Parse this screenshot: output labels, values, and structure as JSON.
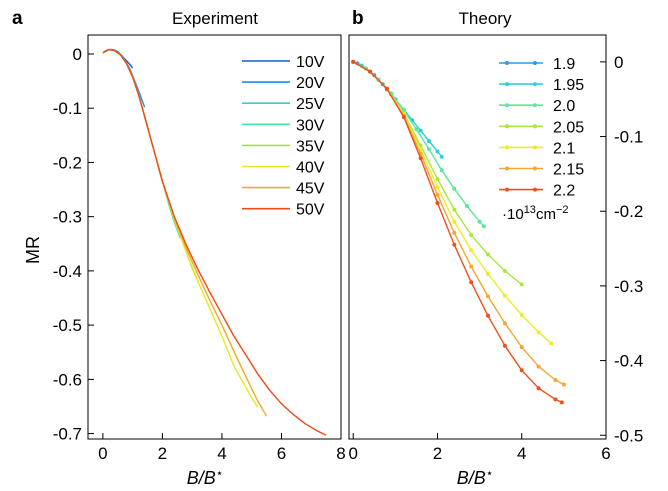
{
  "chart_data": [
    {
      "panel_letter": "a",
      "title": "Experiment",
      "type": "line",
      "xlabel_main": "B/B",
      "xlabel_sup": "⋆",
      "ylabel": "MR",
      "xlim": [
        -0.5,
        8
      ],
      "ylim": [
        -0.71,
        0.035
      ],
      "xticks": [
        0,
        2,
        4,
        6,
        8
      ],
      "yticks": [
        0,
        -0.1,
        -0.2,
        -0.3,
        -0.4,
        -0.5,
        -0.6,
        -0.7
      ],
      "ytick_labels": [
        "0",
        "-0.1",
        "-0.2",
        "-0.3",
        "-0.4",
        "-0.5",
        "-0.6",
        "-0.7"
      ],
      "legend_position": "top-right",
      "series": [
        {
          "name": "10V",
          "color": "#1060d0",
          "x": [
            0,
            0.1,
            0.2,
            0.3,
            0.4,
            0.5,
            0.6,
            0.7,
            0.8,
            0.9,
            1.0
          ],
          "y": [
            0.002,
            0.006,
            0.008,
            0.008,
            0.007,
            0.004,
            -0.001,
            -0.007,
            -0.013,
            -0.019,
            -0.026
          ]
        },
        {
          "name": "20V",
          "color": "#1e8fe8",
          "x": [
            0,
            0.1,
            0.2,
            0.3,
            0.4,
            0.5,
            0.6,
            0.7,
            0.8,
            0.9,
            1.0,
            1.2,
            1.4
          ],
          "y": [
            0.002,
            0.006,
            0.008,
            0.008,
            0.007,
            0.004,
            -0.001,
            -0.008,
            -0.017,
            -0.027,
            -0.04,
            -0.068,
            -0.098
          ]
        },
        {
          "name": "25V",
          "color": "#2ad2d2",
          "x": [
            0,
            0.2,
            0.4,
            0.6,
            0.8,
            1.0,
            1.2,
            1.4,
            1.6,
            1.8,
            2.0
          ],
          "y": [
            0.002,
            0.008,
            0.006,
            -0.002,
            -0.018,
            -0.042,
            -0.075,
            -0.115,
            -0.155,
            -0.195,
            -0.235
          ]
        },
        {
          "name": "30V",
          "color": "#46e8a0",
          "x": [
            0,
            0.2,
            0.4,
            0.6,
            0.8,
            1.0,
            1.2,
            1.4,
            1.6,
            1.8,
            2.0,
            2.2,
            2.4,
            2.6
          ],
          "y": [
            0.002,
            0.008,
            0.006,
            -0.002,
            -0.018,
            -0.042,
            -0.075,
            -0.115,
            -0.155,
            -0.195,
            -0.235,
            -0.275,
            -0.31,
            -0.34
          ]
        },
        {
          "name": "35V",
          "color": "#a6e23a",
          "x": [
            0,
            0.2,
            0.4,
            0.6,
            0.8,
            1.0,
            1.2,
            1.4,
            1.6,
            1.8,
            2.0,
            2.2,
            2.4,
            2.6,
            2.8,
            3.0,
            3.2
          ],
          "y": [
            0.002,
            0.008,
            0.006,
            -0.002,
            -0.018,
            -0.042,
            -0.075,
            -0.115,
            -0.155,
            -0.195,
            -0.235,
            -0.27,
            -0.305,
            -0.335,
            -0.365,
            -0.395,
            -0.42
          ]
        },
        {
          "name": "40V",
          "color": "#e8e81e",
          "x": [
            0,
            0.2,
            0.4,
            0.6,
            0.8,
            1.0,
            1.2,
            1.4,
            1.6,
            1.8,
            2.0,
            2.4,
            2.8,
            3.2,
            3.6,
            4.0,
            4.4,
            4.8,
            5.2
          ],
          "y": [
            0.002,
            0.008,
            0.006,
            -0.002,
            -0.018,
            -0.042,
            -0.075,
            -0.115,
            -0.155,
            -0.195,
            -0.235,
            -0.305,
            -0.365,
            -0.42,
            -0.47,
            -0.52,
            -0.575,
            -0.615,
            -0.652
          ]
        },
        {
          "name": "45V",
          "color": "#f0a830",
          "x": [
            0,
            0.2,
            0.4,
            0.6,
            0.8,
            1.0,
            1.2,
            1.4,
            1.6,
            1.8,
            2.0,
            2.4,
            2.8,
            3.2,
            3.6,
            4.0,
            4.4,
            4.8,
            5.2,
            5.5
          ],
          "y": [
            0.002,
            0.008,
            0.006,
            -0.002,
            -0.018,
            -0.042,
            -0.075,
            -0.115,
            -0.155,
            -0.195,
            -0.235,
            -0.302,
            -0.358,
            -0.408,
            -0.455,
            -0.5,
            -0.548,
            -0.595,
            -0.64,
            -0.668
          ]
        },
        {
          "name": "50V",
          "color": "#f04818",
          "x": [
            0,
            0.2,
            0.4,
            0.6,
            0.8,
            1.0,
            1.2,
            1.4,
            1.6,
            1.8,
            2.0,
            2.4,
            2.8,
            3.2,
            3.6,
            4.0,
            4.4,
            4.8,
            5.2,
            5.6,
            6.0,
            6.4,
            6.8,
            7.2,
            7.5
          ],
          "y": [
            0.002,
            0.008,
            0.006,
            -0.002,
            -0.018,
            -0.042,
            -0.075,
            -0.115,
            -0.155,
            -0.195,
            -0.235,
            -0.3,
            -0.352,
            -0.398,
            -0.44,
            -0.48,
            -0.52,
            -0.555,
            -0.59,
            -0.62,
            -0.645,
            -0.665,
            -0.682,
            -0.695,
            -0.703
          ]
        }
      ]
    },
    {
      "panel_letter": "b",
      "title": "Theory",
      "type": "line",
      "xlabel_main": "B/B",
      "xlabel_sup": "⋆",
      "xlim": [
        -0.1,
        6
      ],
      "ylim": [
        -0.505,
        0.036
      ],
      "xticks": [
        0,
        2,
        4,
        6
      ],
      "yticks": [
        0,
        -0.1,
        -0.2,
        -0.3,
        -0.4,
        -0.5
      ],
      "ytick_labels": [
        "0",
        "-0.1",
        "-0.2",
        "-0.3",
        "-0.4",
        "-0.5"
      ],
      "ytick_position": "right",
      "legend_position": "top-right",
      "legend_unit_prefix": "·10",
      "legend_unit_exp1": "13",
      "legend_unit_mid": "cm",
      "legend_unit_exp2": "−2",
      "series": [
        {
          "name": "1.9",
          "color": "#2b9be8",
          "x": [
            0,
            0.1,
            0.2,
            0.3,
            0.4,
            0.5,
            0.6,
            0.7,
            0.8,
            0.9,
            1.0
          ],
          "y": [
            0,
            -0.002,
            -0.005,
            -0.009,
            -0.013,
            -0.018,
            -0.024,
            -0.03,
            -0.036,
            -0.043,
            -0.05
          ]
        },
        {
          "name": "1.95",
          "color": "#30cfe0",
          "x": [
            0,
            0.2,
            0.4,
            0.6,
            0.8,
            1.0,
            1.2,
            1.4,
            1.6,
            1.8,
            2.0,
            2.1
          ],
          "y": [
            0,
            -0.005,
            -0.013,
            -0.024,
            -0.037,
            -0.05,
            -0.064,
            -0.078,
            -0.092,
            -0.106,
            -0.12,
            -0.127
          ]
        },
        {
          "name": "2.0",
          "color": "#5ce898",
          "x": [
            0,
            0.3,
            0.6,
            0.9,
            1.2,
            1.5,
            1.8,
            2.1,
            2.4,
            2.7,
            3.0,
            3.1
          ],
          "y": [
            0,
            -0.009,
            -0.024,
            -0.042,
            -0.065,
            -0.09,
            -0.117,
            -0.145,
            -0.17,
            -0.193,
            -0.214,
            -0.22
          ]
        },
        {
          "name": "2.05",
          "color": "#a8e840",
          "x": [
            0,
            0.4,
            0.8,
            1.2,
            1.6,
            2.0,
            2.4,
            2.8,
            3.2,
            3.6,
            4.0
          ],
          "y": [
            0,
            -0.013,
            -0.036,
            -0.069,
            -0.112,
            -0.157,
            -0.198,
            -0.232,
            -0.258,
            -0.28,
            -0.298
          ]
        },
        {
          "name": "2.1",
          "color": "#ecec28",
          "x": [
            0,
            0.4,
            0.8,
            1.2,
            1.6,
            2.0,
            2.4,
            2.8,
            3.2,
            3.6,
            4.0,
            4.4,
            4.7
          ],
          "y": [
            0,
            -0.013,
            -0.036,
            -0.07,
            -0.117,
            -0.168,
            -0.214,
            -0.252,
            -0.284,
            -0.313,
            -0.339,
            -0.362,
            -0.377
          ]
        },
        {
          "name": "2.15",
          "color": "#f5a630",
          "x": [
            0,
            0.4,
            0.8,
            1.2,
            1.6,
            2.0,
            2.4,
            2.8,
            3.2,
            3.6,
            4.0,
            4.4,
            4.8,
            5.0
          ],
          "y": [
            0,
            -0.013,
            -0.036,
            -0.072,
            -0.123,
            -0.178,
            -0.229,
            -0.274,
            -0.314,
            -0.35,
            -0.382,
            -0.408,
            -0.426,
            -0.432
          ]
        },
        {
          "name": "2.2",
          "color": "#f04f1c",
          "x": [
            0,
            0.4,
            0.8,
            1.2,
            1.6,
            2.0,
            2.4,
            2.8,
            3.2,
            3.6,
            4.0,
            4.4,
            4.8,
            4.95
          ],
          "y": [
            0,
            -0.013,
            -0.036,
            -0.074,
            -0.129,
            -0.189,
            -0.245,
            -0.295,
            -0.34,
            -0.38,
            -0.413,
            -0.437,
            -0.452,
            -0.456
          ]
        }
      ]
    }
  ]
}
